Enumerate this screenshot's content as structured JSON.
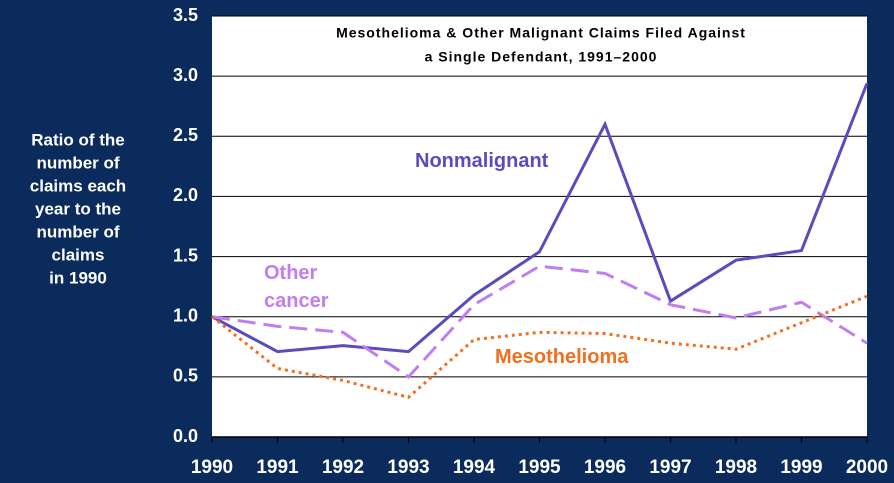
{
  "chart_data": {
    "type": "line",
    "title": [
      "Mesothelioma & Other Malignant Claims Filed Against",
      "a Single Defendant, 1991–2000"
    ],
    "y_label": [
      "Ratio of the",
      "number of",
      "claims each",
      "year to the",
      "number of",
      "claims",
      "in 1990"
    ],
    "categories": [
      "1990",
      "1991",
      "1992",
      "1993",
      "1994",
      "1995",
      "1996",
      "1997",
      "1998",
      "1999",
      "2000"
    ],
    "series": [
      {
        "name": "Nonmalignant",
        "color": "#5b4bbd",
        "style": "solid",
        "values": [
          1.0,
          0.71,
          0.76,
          0.71,
          1.18,
          1.54,
          2.6,
          1.13,
          1.47,
          1.55,
          2.94
        ]
      },
      {
        "name": "Other cancer",
        "color": "#c07ef0",
        "style": "dashed",
        "values": [
          1.0,
          0.92,
          0.87,
          0.5,
          1.1,
          1.42,
          1.36,
          1.1,
          0.99,
          1.12,
          0.78
        ]
      },
      {
        "name": "Mesothelioma",
        "color": "#f07020",
        "style": "dotted",
        "values": [
          1.0,
          0.57,
          0.47,
          0.33,
          0.81,
          0.87,
          0.86,
          0.78,
          0.73,
          0.95,
          1.17
        ]
      }
    ],
    "ylim": [
      0,
      3.5
    ],
    "yticks": [
      {
        "value": 0,
        "label": "0.0"
      },
      0.5,
      {
        "value": 1,
        "label": "1.0"
      },
      1.5,
      {
        "value": 2,
        "label": "2.0"
      },
      2.5,
      {
        "value": 3,
        "label": "3.0"
      },
      3.5
    ],
    "grid": true
  }
}
